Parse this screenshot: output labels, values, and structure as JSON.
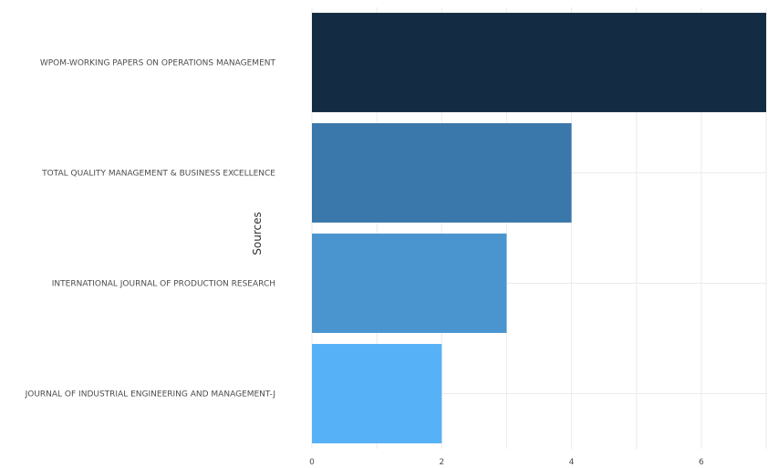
{
  "chart_data": {
    "type": "bar",
    "orientation": "horizontal",
    "title": "",
    "xlabel": "",
    "ylabel": "Sources",
    "categories": [
      "WPOM-WORKING PAPERS ON OPERATIONS MANAGEMENT",
      "TOTAL QUALITY MANAGEMENT & BUSINESS EXCELLENCE",
      "INTERNATIONAL JOURNAL OF PRODUCTION RESEARCH",
      "JOURNAL OF INDUSTRIAL ENGINEERING AND MANAGEMENT-J"
    ],
    "values": [
      7,
      4,
      3,
      2
    ],
    "bar_colors": [
      "#132b43",
      "#3a77aa",
      "#4a95cf",
      "#56b1f7"
    ],
    "xlim": [
      0,
      7
    ],
    "xticks": [
      0,
      2,
      4,
      6
    ],
    "grid": true,
    "legend": "none"
  }
}
